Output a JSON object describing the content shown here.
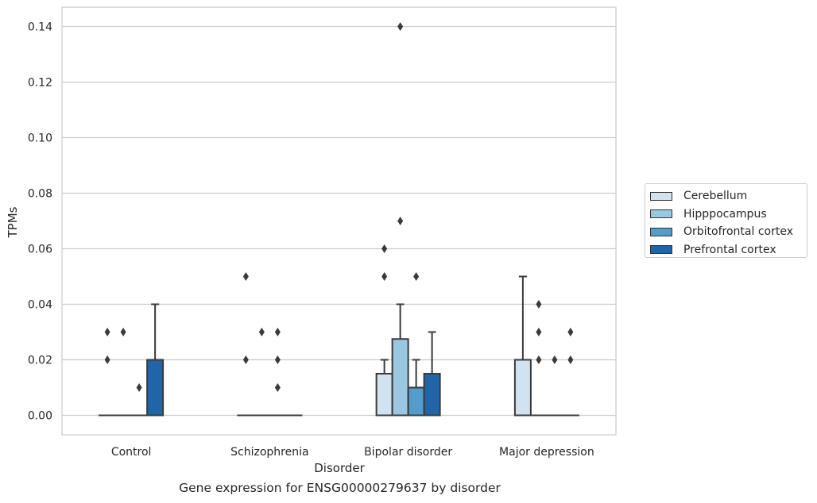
{
  "chart_data": {
    "type": "box",
    "xlabel": "Disorder",
    "ylabel": "TPMs",
    "caption": "Gene expression for ENSG00000279637 by disorder",
    "categories": [
      "Control",
      "Schizophrenia",
      "Bipolar disorder",
      "Major depression"
    ],
    "ylim": [
      -0.007,
      0.147
    ],
    "yticks": [
      "0.00",
      "0.02",
      "0.04",
      "0.06",
      "0.08",
      "0.10",
      "0.12",
      "0.14"
    ],
    "grid": "horizontal",
    "legend_position": "right",
    "series": [
      {
        "name": "Cerebellum",
        "color": "#d1e2f1",
        "boxes": [
          {
            "q1": 0,
            "median": 0,
            "q3": 0,
            "whisker_low": 0,
            "whisker_high": 0,
            "outliers": [
              0.02,
              0.03
            ]
          },
          {
            "q1": 0,
            "median": 0,
            "q3": 0,
            "whisker_low": 0,
            "whisker_high": 0,
            "outliers": [
              0.02,
              0.05
            ]
          },
          {
            "q1": 0,
            "median": 0,
            "q3": 0.015,
            "whisker_low": 0,
            "whisker_high": 0.02,
            "outliers": [
              0.05,
              0.06
            ]
          },
          {
            "q1": 0,
            "median": 0,
            "q3": 0.02,
            "whisker_low": 0,
            "whisker_high": 0.05,
            "outliers": []
          }
        ]
      },
      {
        "name": "Hipppocampus",
        "color": "#9ac8e0",
        "boxes": [
          {
            "q1": 0,
            "median": 0,
            "q3": 0,
            "whisker_low": 0,
            "whisker_high": 0,
            "outliers": [
              0.03
            ]
          },
          {
            "q1": 0,
            "median": 0,
            "q3": 0,
            "whisker_low": 0,
            "whisker_high": 0,
            "outliers": [
              0.03
            ]
          },
          {
            "q1": 0,
            "median": 0,
            "q3": 0.0275,
            "whisker_low": 0,
            "whisker_high": 0.04,
            "outliers": [
              0.07,
              0.14
            ]
          },
          {
            "q1": 0,
            "median": 0,
            "q3": 0,
            "whisker_low": 0,
            "whisker_high": 0,
            "outliers": [
              0.02,
              0.03,
              0.04
            ]
          }
        ]
      },
      {
        "name": "Orbitofrontal cortex",
        "color": "#529dcc",
        "boxes": [
          {
            "q1": 0,
            "median": 0,
            "q3": 0,
            "whisker_low": 0,
            "whisker_high": 0,
            "outliers": [
              0.01
            ]
          },
          {
            "q1": 0,
            "median": 0,
            "q3": 0,
            "whisker_low": 0,
            "whisker_high": 0,
            "outliers": [
              0.01,
              0.02,
              0.03
            ]
          },
          {
            "q1": 0,
            "median": 0,
            "q3": 0.01,
            "whisker_low": 0,
            "whisker_high": 0.02,
            "outliers": [
              0.05
            ]
          },
          {
            "q1": 0,
            "median": 0,
            "q3": 0,
            "whisker_low": 0,
            "whisker_high": 0,
            "outliers": [
              0.02
            ]
          }
        ]
      },
      {
        "name": "Prefrontal cortex",
        "color": "#1f65a8",
        "boxes": [
          {
            "q1": 0,
            "median": 0,
            "q3": 0.02,
            "whisker_low": 0,
            "whisker_high": 0.04,
            "outliers": []
          },
          {
            "q1": 0,
            "median": 0,
            "q3": 0,
            "whisker_low": 0,
            "whisker_high": 0,
            "outliers": []
          },
          {
            "q1": 0,
            "median": 0,
            "q3": 0.015,
            "whisker_low": 0,
            "whisker_high": 0.03,
            "outliers": []
          },
          {
            "q1": 0,
            "median": 0,
            "q3": 0,
            "whisker_low": 0,
            "whisker_high": 0,
            "outliers": [
              0.02,
              0.03
            ]
          }
        ]
      }
    ]
  }
}
